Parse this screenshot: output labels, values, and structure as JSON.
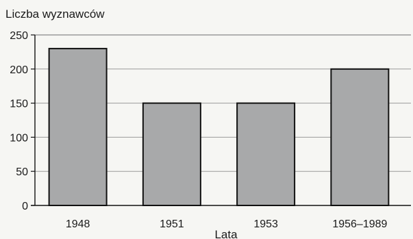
{
  "chart_data": {
    "type": "bar",
    "ylabel": "Liczba wyznawców",
    "xlabel": "Lata",
    "categories": [
      "1948",
      "1951",
      "1953",
      "1956–1989"
    ],
    "values": [
      230,
      150,
      150,
      200
    ],
    "ylim": [
      0,
      250
    ],
    "yticks": [
      0,
      50,
      100,
      150,
      200,
      250
    ],
    "grid": true,
    "colors": {
      "bar_fill": "#a8a9aa",
      "bar_stroke": "#111111",
      "grid": "#9a9a9a"
    }
  }
}
